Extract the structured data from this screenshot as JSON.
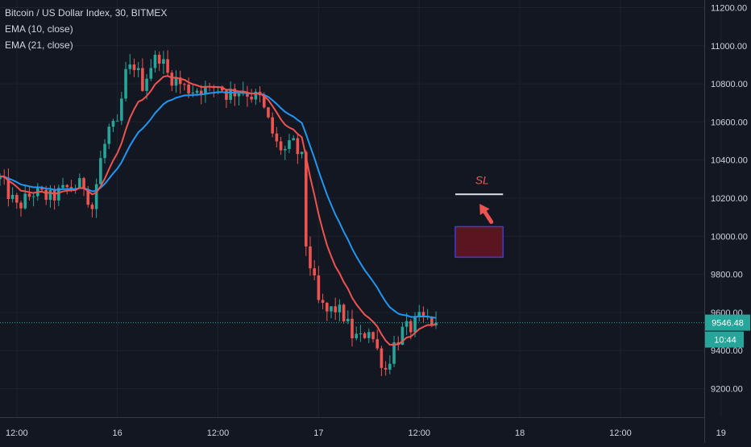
{
  "legend": {
    "symbol_line": "Bitcoin / US Dollar Index, 30, BITMEX",
    "ema_fast": "EMA (10, close)",
    "ema_slow": "EMA (21, close)"
  },
  "price_label": {
    "value": "9546.48",
    "countdown": "10:44"
  },
  "annotation": {
    "sl_text": "SL"
  },
  "colors": {
    "background": "#131722",
    "grid": "#1e2230",
    "up": "#26a69a",
    "down": "#ef5350",
    "ema_fast": "#ef5350",
    "ema_slow": "#2196f3",
    "price_line": "#26a69a",
    "zone_fill": "#5a1520",
    "zone_border": "#3d3dd6"
  },
  "chart_data": {
    "type": "candlestick",
    "title": "Bitcoin / US Dollar Index, 30, BITMEX",
    "y_axis": {
      "range": [
        9050,
        11240
      ],
      "ticks": [
        9200,
        9400,
        9600,
        9800,
        10000,
        10200,
        10400,
        10600,
        10800,
        11000,
        11200
      ],
      "tick_labels": [
        "9200.00",
        "9400.00",
        "9600.00",
        "9800.00",
        "10000.00",
        "10200.00",
        "10400.00",
        "10600.00",
        "10800.00",
        "11000.00",
        "11200.00"
      ]
    },
    "x_axis": {
      "range_hours": [
        -14,
        70
      ],
      "ticks": [
        {
          "t": -12,
          "label": "12:00"
        },
        {
          "t": 0,
          "label": "16"
        },
        {
          "t": 12,
          "label": "12:00"
        },
        {
          "t": 24,
          "label": "17"
        },
        {
          "t": 36,
          "label": "12:00"
        },
        {
          "t": 48,
          "label": "18"
        },
        {
          "t": 60,
          "label": "12:00"
        },
        {
          "t": 72,
          "label": "19"
        }
      ]
    },
    "close_path": [
      [
        -14,
        10300
      ],
      [
        -12,
        10150
      ],
      [
        -10,
        10230
      ],
      [
        -8,
        10200
      ],
      [
        -6,
        10250
      ],
      [
        -4,
        10270
      ],
      [
        -3,
        10150
      ],
      [
        -2,
        10400
      ],
      [
        -1,
        10560
      ],
      [
        0,
        10570
      ],
      [
        1,
        10850
      ],
      [
        2,
        10900
      ],
      [
        3,
        10800
      ],
      [
        4,
        10900
      ],
      [
        5,
        10950
      ],
      [
        6,
        10850
      ],
      [
        7,
        10820
      ],
      [
        8,
        10780
      ],
      [
        9,
        10770
      ],
      [
        10,
        10780
      ],
      [
        11,
        10760
      ],
      [
        12,
        10800
      ],
      [
        13,
        10750
      ],
      [
        14,
        10760
      ],
      [
        15,
        10770
      ],
      [
        16,
        10740
      ],
      [
        17,
        10720
      ],
      [
        18,
        10600
      ],
      [
        19,
        10480
      ],
      [
        20,
        10450
      ],
      [
        21,
        10480
      ],
      [
        22,
        10400
      ],
      [
        22.3,
        10000
      ],
      [
        23,
        9850
      ],
      [
        24,
        9650
      ],
      [
        25,
        9600
      ],
      [
        26,
        9620
      ],
      [
        27,
        9580
      ],
      [
        28,
        9480
      ],
      [
        29,
        9460
      ],
      [
        30,
        9520
      ],
      [
        31,
        9400
      ],
      [
        32,
        9300
      ],
      [
        33,
        9430
      ],
      [
        34,
        9500
      ],
      [
        35,
        9520
      ],
      [
        36,
        9560
      ],
      [
        37,
        9560
      ],
      [
        38,
        9546.48
      ]
    ],
    "current_price": 9546.48,
    "annotations": {
      "sl_line": {
        "price": 10220,
        "t_start": 40.3,
        "t_end": 46
      },
      "sl_label": {
        "text": "SL",
        "price": 10275,
        "t": 43.5
      },
      "zone": {
        "price_top": 10050,
        "price_bottom": 9890,
        "t_start": 40.3,
        "t_end": 46
      },
      "arrow": {
        "from": {
          "t": 44.6,
          "price": 10075
        },
        "to": {
          "t": 43.2,
          "price": 10170
        }
      }
    }
  }
}
